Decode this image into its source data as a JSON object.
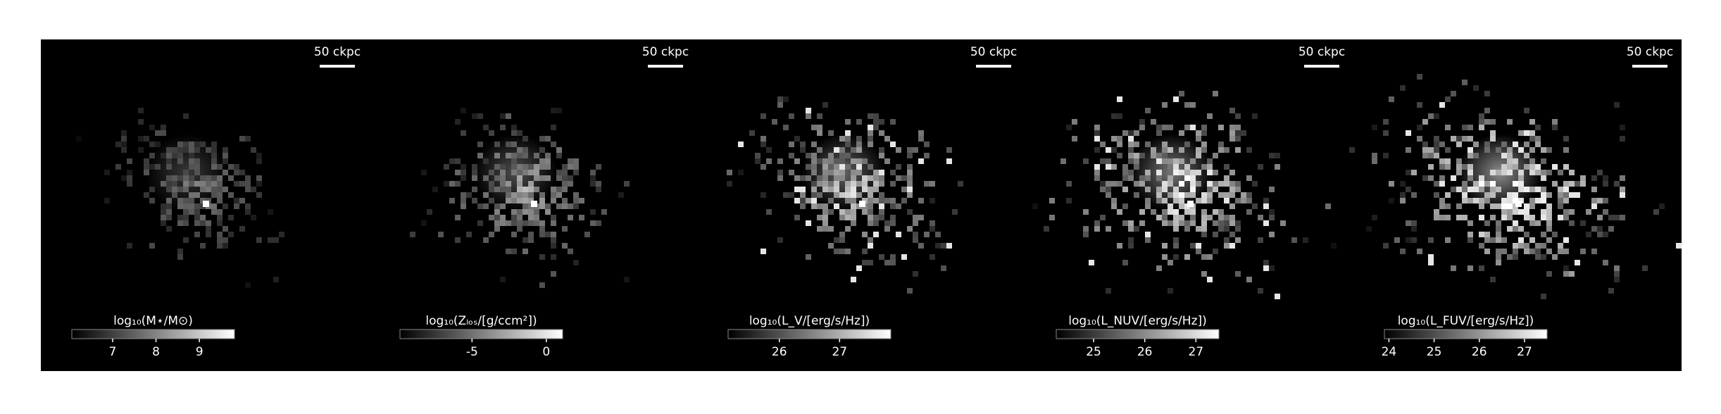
{
  "chart_data": [
    {
      "type": "image",
      "scale_label": "50 ckpc",
      "colorbar_label": "log₁₀(M⋆/M⊙)",
      "clim": [
        6.06,
        9.81
      ],
      "cticks": [
        7,
        8,
        9
      ]
    },
    {
      "type": "image",
      "scale_label": "50 ckpc",
      "colorbar_label": "log₁₀(Zₗₒₛ/[g/ccm²])",
      "clim": [
        -9.85,
        1.1
      ],
      "cticks": [
        -5,
        0
      ]
    },
    {
      "type": "image",
      "scale_label": "50 ckpc",
      "colorbar_label": "log₁₀(L_V/[erg/s/Hz])",
      "clim": [
        25.15,
        27.85
      ],
      "cticks": [
        26,
        27
      ]
    },
    {
      "type": "image",
      "scale_label": "50 ckpc",
      "colorbar_label": "log₁₀(L_NUV/[erg/s/Hz])",
      "clim": [
        24.27,
        27.45
      ],
      "cticks": [
        25,
        26,
        27
      ]
    },
    {
      "type": "image",
      "scale_label": "50 ckpc",
      "colorbar_label": "log₁₀(L_FUV/[erg/s/Hz])",
      "clim": [
        23.9,
        27.5
      ],
      "cticks": [
        24,
        25,
        26,
        27
      ]
    }
  ]
}
